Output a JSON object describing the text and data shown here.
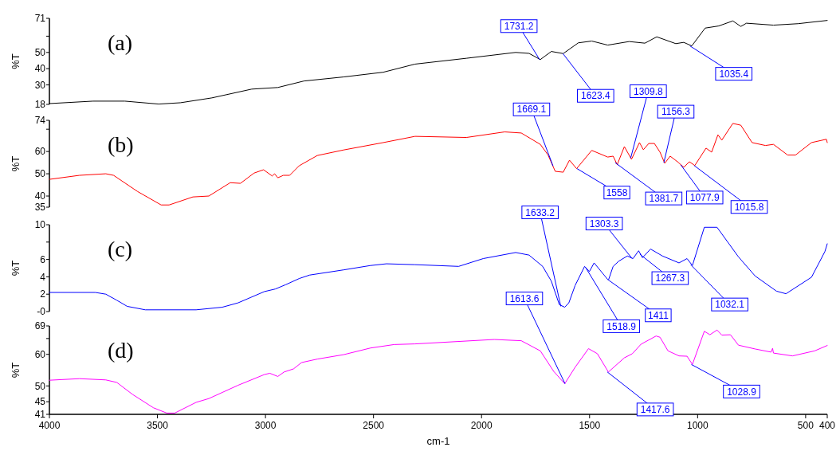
{
  "chart_data": [
    {
      "type": "line",
      "ylabel": "%T",
      "xlim": [
        4000,
        400
      ],
      "ylim": [
        18,
        71
      ],
      "yticks": [
        71,
        {
          "value": 60,
          "label": null
        },
        50,
        40,
        30,
        18
      ],
      "tick_labels": "y",
      "series": [
        {
          "color": "#000000",
          "x": [
            4000,
            3798,
            3651,
            3494,
            3394,
            3248,
            3064,
            2943,
            2822,
            2638,
            2455,
            2308,
            2070,
            1842,
            1780,
            1728,
            1677,
            1622,
            1552,
            1490,
            1416,
            1317,
            1244,
            1189,
            1101,
            1064,
            1027,
            965,
            902,
            837,
            800,
            774,
            649,
            535,
            400
          ],
          "values": [
            18.5,
            20.0,
            20.0,
            18.2,
            19.0,
            22.0,
            27.4,
            28.4,
            32.4,
            34.9,
            37.8,
            42.8,
            46.4,
            50.0,
            49.4,
            45.6,
            50.6,
            49.3,
            55.9,
            57.0,
            54.5,
            56.7,
            55.7,
            59.6,
            55.4,
            56.2,
            54.0,
            65.0,
            66.3,
            69.4,
            66.0,
            68.0,
            66.8,
            67.7,
            69.7
          ]
        }
      ],
      "annotations": [
        "(a)",
        {
          "text": "1731.2",
          "x": 1731.2,
          "y": 45.6
        },
        {
          "text": "1623.4",
          "x": 1623.4,
          "y": 49.3
        },
        {
          "text": "1035.4",
          "x": 1035.4,
          "y": 54.0
        }
      ]
    },
    {
      "type": "line",
      "ylabel": "%T",
      "xlim": [
        4000,
        400
      ],
      "ylim": [
        35,
        74
      ],
      "yticks": [
        74,
        {
          "value": 70,
          "label": null
        },
        60,
        50,
        40,
        35
      ],
      "tick_labels": "y",
      "series": [
        {
          "color": "#ff0000",
          "x": [
            4000,
            3861,
            3739,
            3703,
            3593,
            3483,
            3446,
            3336,
            3262,
            3163,
            3116,
            3053,
            3009,
            2969,
            2958,
            2943,
            2917,
            2888,
            2844,
            2760,
            2638,
            2455,
            2308,
            2070,
            1893,
            1816,
            1728,
            1692,
            1659,
            1622,
            1593,
            1560,
            1490,
            1416,
            1391,
            1372,
            1339,
            1306,
            1269,
            1251,
            1226,
            1200,
            1174,
            1152,
            1127,
            1093,
            1064,
            1038,
            1013,
            961,
            935,
            906,
            888,
            837,
            800,
            748,
            686,
            649,
            583,
            547,
            473,
            404,
            400
          ],
          "values": [
            47.5,
            49.3,
            50.0,
            49.3,
            42.1,
            36.0,
            36.0,
            39.6,
            40.0,
            46.0,
            45.7,
            50.3,
            51.8,
            49.0,
            50.0,
            48.2,
            49.3,
            49.3,
            53.6,
            58.2,
            60.7,
            64.0,
            66.8,
            66.3,
            68.8,
            68.3,
            63.2,
            58.4,
            51.1,
            50.7,
            56.1,
            52.3,
            60.5,
            57.5,
            57.9,
            54.1,
            62.2,
            56.5,
            64.0,
            60.8,
            63.6,
            63.6,
            59.7,
            54.7,
            57.9,
            55.4,
            52.9,
            55.4,
            53.7,
            61.5,
            59.7,
            67.5,
            65.1,
            72.6,
            71.8,
            64.0,
            62.7,
            63.2,
            58.4,
            58.4,
            64.0,
            65.5,
            64.0
          ]
        }
      ],
      "annotations": [
        "(b)",
        {
          "text": "1669.1",
          "x": 1669.1,
          "y": 53.5
        },
        {
          "text": "1558",
          "x": 1558,
          "y": 52.3
        },
        {
          "text": "1309.8",
          "x": 1309.8,
          "y": 57.0
        },
        {
          "text": "1156.3",
          "x": 1156.3,
          "y": 55.0
        },
        {
          "text": "1381.7",
          "x": 1381.7,
          "y": 55.0
        },
        {
          "text": "1077.9",
          "x": 1077.9,
          "y": 54.0
        },
        {
          "text": "1015.8",
          "x": 1015.8,
          "y": 53.7
        }
      ]
    },
    {
      "type": "line",
      "ylabel": "%T",
      "xlim": [
        4000,
        400
      ],
      "ylim": [
        0,
        10
      ],
      "yticks": [
        10,
        {
          "value": 8,
          "label": null
        },
        6,
        4,
        2,
        {
          "value": 0,
          "label": "-0"
        }
      ],
      "tick_labels": "y",
      "series": [
        {
          "color": "#0000ff",
          "x": [
            4000,
            3787,
            3739,
            3688,
            3640,
            3556,
            3321,
            3200,
            3127,
            3005,
            2954,
            2906,
            2844,
            2796,
            2638,
            2514,
            2440,
            2308,
            2106,
            1992,
            1842,
            1780,
            1717,
            1677,
            1640,
            1615,
            1596,
            1567,
            1523,
            1501,
            1479,
            1413,
            1391,
            1365,
            1325,
            1299,
            1273,
            1255,
            1218,
            1163,
            1086,
            1049,
            1024,
            969,
            910,
            811,
            734,
            635,
            591,
            473,
            411,
            400
          ],
          "values": [
            2.2,
            2.2,
            2.0,
            1.3,
            0.6,
            0.2,
            0.2,
            0.5,
            1.0,
            2.3,
            2.6,
            3.1,
            3.8,
            4.2,
            4.8,
            5.3,
            5.5,
            5.4,
            5.2,
            6.1,
            6.8,
            6.5,
            5.2,
            3.5,
            0.8,
            0.5,
            1.0,
            3.0,
            5.2,
            4.6,
            5.6,
            3.6,
            5.2,
            5.8,
            6.4,
            6.1,
            7.0,
            6.2,
            7.2,
            6.4,
            5.6,
            6.1,
            5.3,
            9.7,
            9.7,
            6.3,
            4.1,
            2.35,
            2.05,
            3.95,
            6.9,
            7.8
          ]
        }
      ],
      "annotations": [
        "(c)",
        {
          "text": "1633.2",
          "x": 1633.2,
          "y": 0.6
        },
        {
          "text": "1303.3",
          "x": 1303.3,
          "y": 6.1
        },
        {
          "text": "1518.9",
          "x": 1518.9,
          "y": 5.1
        },
        {
          "text": "1411",
          "x": 1411,
          "y": 3.6
        },
        {
          "text": "1267.3",
          "x": 1267.3,
          "y": 6.6
        },
        {
          "text": "1032.1",
          "x": 1032.1,
          "y": 5.4
        }
      ]
    },
    {
      "type": "line",
      "ylabel": "%T",
      "xlabel": "cm-1",
      "xlim": [
        4000,
        400
      ],
      "xticks": [
        4000,
        3500,
        3000,
        2500,
        2000,
        1500,
        1000,
        500,
        400
      ],
      "ylim": [
        41,
        69
      ],
      "yticks": [
        69,
        {
          "value": 65,
          "label": null
        },
        60,
        50,
        45,
        41
      ],
      "series": [
        {
          "color": "#ff00ff",
          "x": [
            4000,
            3861,
            3739,
            3688,
            3615,
            3519,
            3457,
            3420,
            3321,
            3262,
            3127,
            3005,
            2980,
            2943,
            2914,
            2870,
            2833,
            2760,
            2638,
            2514,
            2404,
            2308,
            1941,
            1816,
            1728,
            1666,
            1615,
            1567,
            1505,
            1464,
            1413,
            1339,
            1302,
            1262,
            1192,
            1174,
            1137,
            1086,
            1049,
            1024,
            969,
            943,
            910,
            888,
            848,
            811,
            734,
            660,
            653,
            649,
            561,
            458,
            400
          ],
          "values": [
            51.8,
            52.3,
            51.9,
            51.1,
            47.3,
            43.1,
            41.4,
            41.4,
            44.8,
            46.0,
            50.2,
            53.6,
            54.0,
            53.0,
            54.4,
            55.4,
            57.4,
            58.5,
            59.9,
            62.0,
            63.1,
            63.3,
            64.7,
            64.3,
            61.1,
            54.6,
            50.7,
            55.9,
            61.8,
            60.2,
            54.4,
            58.9,
            60.2,
            63.2,
            65.8,
            65.4,
            61.1,
            59.5,
            59.4,
            56.8,
            67.3,
            66.2,
            67.7,
            66.1,
            66.2,
            62.9,
            61.7,
            60.7,
            61.9,
            60.4,
            59.5,
            61.1,
            62.8
          ]
        }
      ],
      "annotations": [
        "(d)",
        {
          "text": "1613.6",
          "x": 1613.6,
          "y": 50.7
        },
        {
          "text": "1417.6",
          "x": 1417.6,
          "y": 54.4
        },
        {
          "text": "1028.9",
          "x": 1028.9,
          "y": 56.8
        }
      ]
    }
  ]
}
